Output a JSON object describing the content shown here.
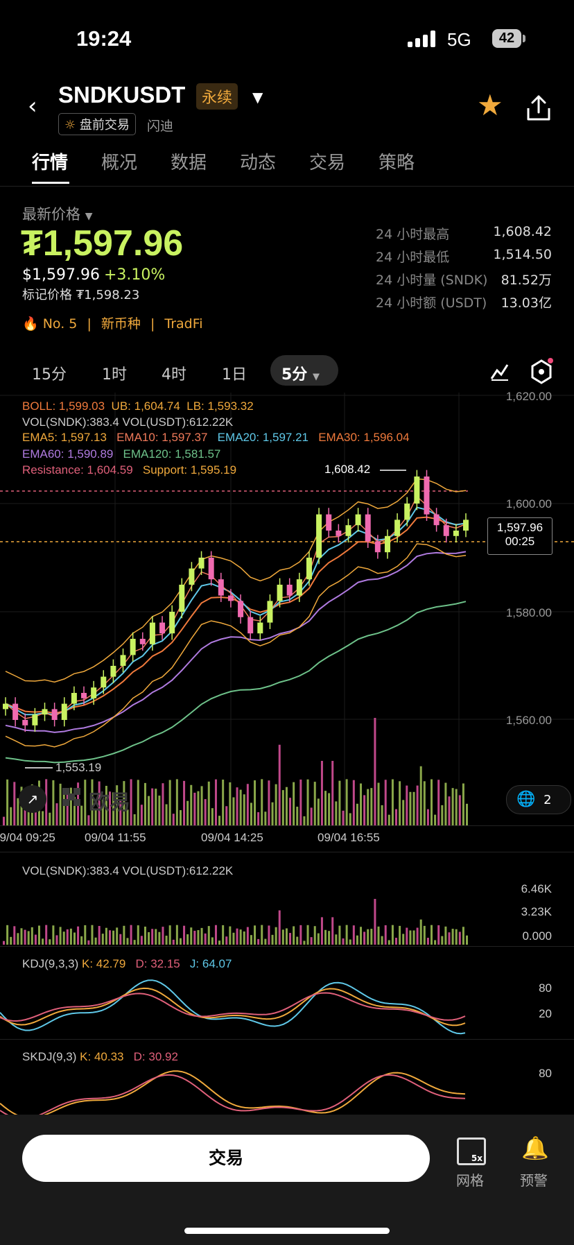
{
  "status_bar": {
    "time": "19:24",
    "network": "5G",
    "battery": "42"
  },
  "header": {
    "symbol": "SNDKUSDT",
    "contract_tag": "永续",
    "premarket_tag": "盘前交易",
    "name": "闪迪"
  },
  "tabs": [
    "行情",
    "概况",
    "数据",
    "动态",
    "交易",
    "策略"
  ],
  "price": {
    "label": "最新价格",
    "last": "₮1,597.96",
    "usd": "$1,597.96",
    "change": "+3.10%",
    "mark": "标记价格 ₮1,598.23",
    "rank": "No. 5",
    "tag1": "新币种",
    "tag2": "TradFi"
  },
  "stats": [
    {
      "label": "24 小时最高",
      "value": "1,608.42"
    },
    {
      "label": "24 小时最低",
      "value": "1,514.50"
    },
    {
      "label": "24 小时量 (SNDK)",
      "value": "81.52万"
    },
    {
      "label": "24 小时额 (USDT)",
      "value": "13.03亿"
    }
  ],
  "timeframes": [
    "15分",
    "1时",
    "4时",
    "1日",
    "5分"
  ],
  "indicators": {
    "boll": "BOLL: 1,599.03",
    "ub": "UB: 1,604.74",
    "lb": "LB: 1,593.32",
    "vol": "VOL(SNDK):383.4 VOL(USDT):612.22K",
    "ema5": "EMA5: 1,597.13",
    "ema10": "EMA10: 1,597.37",
    "ema20": "EMA20: 1,597.21",
    "ema30": "EMA30: 1,596.04",
    "ema60": "EMA60: 1,590.89",
    "ema120": "EMA120: 1,581.57",
    "resistance": "Resistance: 1,604.59",
    "support": "Support: 1,595.19"
  },
  "chart_data": {
    "type": "candlestick",
    "y_ticks": [
      "1,620.00",
      "1,600.00",
      "1,580.00",
      "1,560.00"
    ],
    "x_ticks": [
      "09/04 09:25",
      "09/04 11:55",
      "09/04 14:25",
      "09/04 16:55"
    ],
    "high_label": "1,608.42",
    "low_label": "1,553.19",
    "current_price": "1,597.96",
    "countdown": "00:25",
    "close_series": [
      1563,
      1560,
      1559,
      1561,
      1562,
      1560,
      1563,
      1565,
      1564,
      1566,
      1568,
      1570,
      1572,
      1575,
      1574,
      1578,
      1576,
      1580,
      1585,
      1588,
      1590,
      1586,
      1583,
      1582,
      1579,
      1576,
      1578,
      1582,
      1585,
      1583,
      1586,
      1590,
      1598,
      1595,
      1594,
      1596,
      1598,
      1593,
      1591,
      1594,
      1597,
      1600,
      1605,
      1598,
      1596,
      1594,
      1595,
      1597
    ],
    "vol_y_ticks": [
      "6.46K",
      "3.23K",
      "0.000"
    ],
    "kdj": {
      "label": "KDJ(9,3,3)",
      "k": "K: 42.79",
      "d": "D: 32.15",
      "j": "J: 64.07",
      "ticks": [
        "80",
        "20"
      ]
    },
    "skdj": {
      "label": "SKDJ(9,3)",
      "k": "K: 40.33",
      "d": "D: 30.92",
      "ticks": [
        "80"
      ]
    },
    "badge_count": "2",
    "watermark": "欧易"
  },
  "bottom": {
    "trade": "交易",
    "grid": "网格",
    "alert": "预警",
    "grid_badge": "5x"
  }
}
